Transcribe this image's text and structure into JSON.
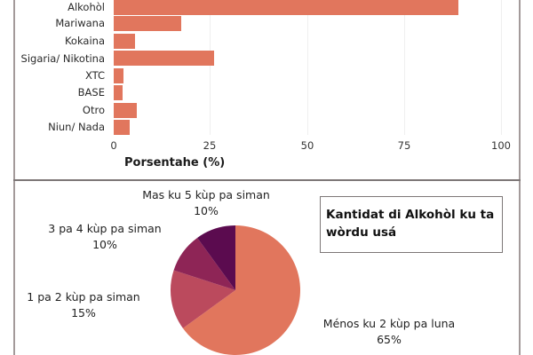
{
  "chart_data": [
    {
      "type": "bar",
      "orientation": "horizontal",
      "title": "",
      "xlabel": "Porsentahe (%)",
      "ylabel": "",
      "xlim": [
        0,
        100
      ],
      "x_ticks": [
        "0",
        "25",
        "50",
        "75",
        "100"
      ],
      "grid": true,
      "categories": [
        "Alkohòl",
        "Mariwana",
        "Kokaina",
        "Sigaria/ Nikotina",
        "XTC",
        "BASE",
        "Otro",
        "Niun/ Nada"
      ],
      "values": [
        89,
        17.5,
        5.5,
        26,
        2.5,
        2.3,
        6,
        4.2
      ],
      "color": "#e1765d"
    },
    {
      "type": "pie",
      "title": "Kantidat di Alkohòl ku ta wòrdu usá",
      "categories": [
        "Ménos ku 2 kùp pa luna",
        "1 pa 2 kùp pa siman",
        "3 pa 4 kùp pa siman",
        "Mas ku 5 kùp pa siman"
      ],
      "values": [
        65,
        15,
        10,
        10
      ],
      "labels": [
        "65%",
        "15%",
        "10%",
        "10%"
      ],
      "colors": [
        "#e1765d",
        "#bb4a5d",
        "#8e2556",
        "#5b0b4f"
      ],
      "legend": "none (direct labels)"
    }
  ],
  "bar_chart": {
    "categories": [
      {
        "label": "Alkohòl",
        "value": 89
      },
      {
        "label": "Mariwana",
        "value": 17.5
      },
      {
        "label": "Kokaina",
        "value": 5.5
      },
      {
        "label": "Sigaria/ Nikotina",
        "value": 26
      },
      {
        "label": "XTC",
        "value": 2.5
      },
      {
        "label": "BASE",
        "value": 2.3
      },
      {
        "label": "Otro",
        "value": 6
      },
      {
        "label": "Niun/ Nada",
        "value": 4.2
      }
    ],
    "ticks": [
      "0",
      "25",
      "50",
      "75",
      "100"
    ],
    "xlabel": "Porsentahe (%)",
    "bar_color": "#e1765d"
  },
  "pie_chart": {
    "title": "Kantidat di Alkohòl ku ta wòrdu usá",
    "slices": [
      {
        "label": "Ménos ku 2 kùp pa luna",
        "pct": "65%",
        "value": 65,
        "color": "#e1765d"
      },
      {
        "label": "1 pa 2 kùp pa siman",
        "pct": "15%",
        "value": 15,
        "color": "#bb4a5d"
      },
      {
        "label": "3 pa 4 kùp pa siman",
        "pct": "10%",
        "value": 10,
        "color": "#8e2556"
      },
      {
        "label": "Mas ku 5 kùp pa siman",
        "pct": "10%",
        "value": 10,
        "color": "#5b0b4f"
      }
    ]
  }
}
